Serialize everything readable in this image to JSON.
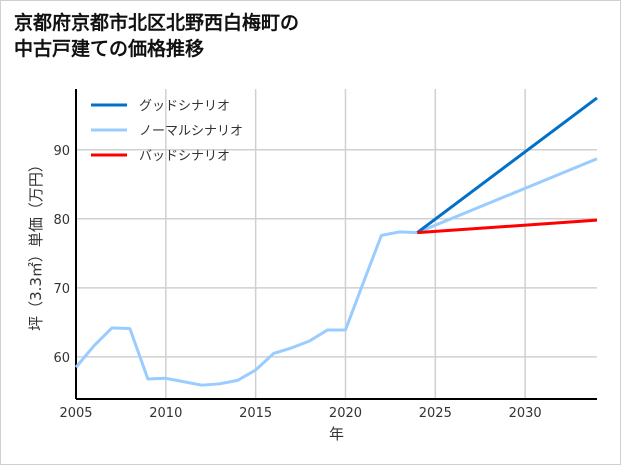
{
  "chart_data": {
    "type": "line",
    "title_lines": [
      "京都府京都市北区北野西白梅町の",
      "中古戸建ての価格推移"
    ],
    "xlabel": "年",
    "ylabel": "坪（3.3㎡）単価（万円）",
    "xlim": [
      2005,
      2034
    ],
    "ylim": [
      53.9,
      98.8
    ],
    "xticks": [
      2005,
      2010,
      2015,
      2020,
      2025,
      2030
    ],
    "yticks": [
      60,
      70,
      80,
      90
    ],
    "grid": true,
    "legend_position": "top-left",
    "series": [
      {
        "name": "グッドシナリオ",
        "color": "#0070c8",
        "x": [
          2024,
          2034
        ],
        "y": [
          78.0,
          97.5
        ]
      },
      {
        "name": "ノーマルシナリオ",
        "color": "#99ccff",
        "x": [
          2005,
          2006,
          2007,
          2008,
          2009,
          2010,
          2011,
          2012,
          2013,
          2014,
          2015,
          2016,
          2017,
          2018,
          2019,
          2020,
          2021,
          2022,
          2023,
          2024,
          2034
        ],
        "y": [
          58.5,
          61.6,
          64.2,
          64.1,
          56.8,
          56.9,
          56.4,
          55.9,
          56.1,
          56.6,
          58.1,
          60.5,
          61.3,
          62.3,
          63.9,
          63.9,
          70.8,
          77.6,
          78.1,
          78.0,
          88.7
        ]
      },
      {
        "name": "バッドシナリオ",
        "color": "#ff0000",
        "x": [
          2024,
          2034
        ],
        "y": [
          78.0,
          79.8
        ]
      }
    ]
  }
}
